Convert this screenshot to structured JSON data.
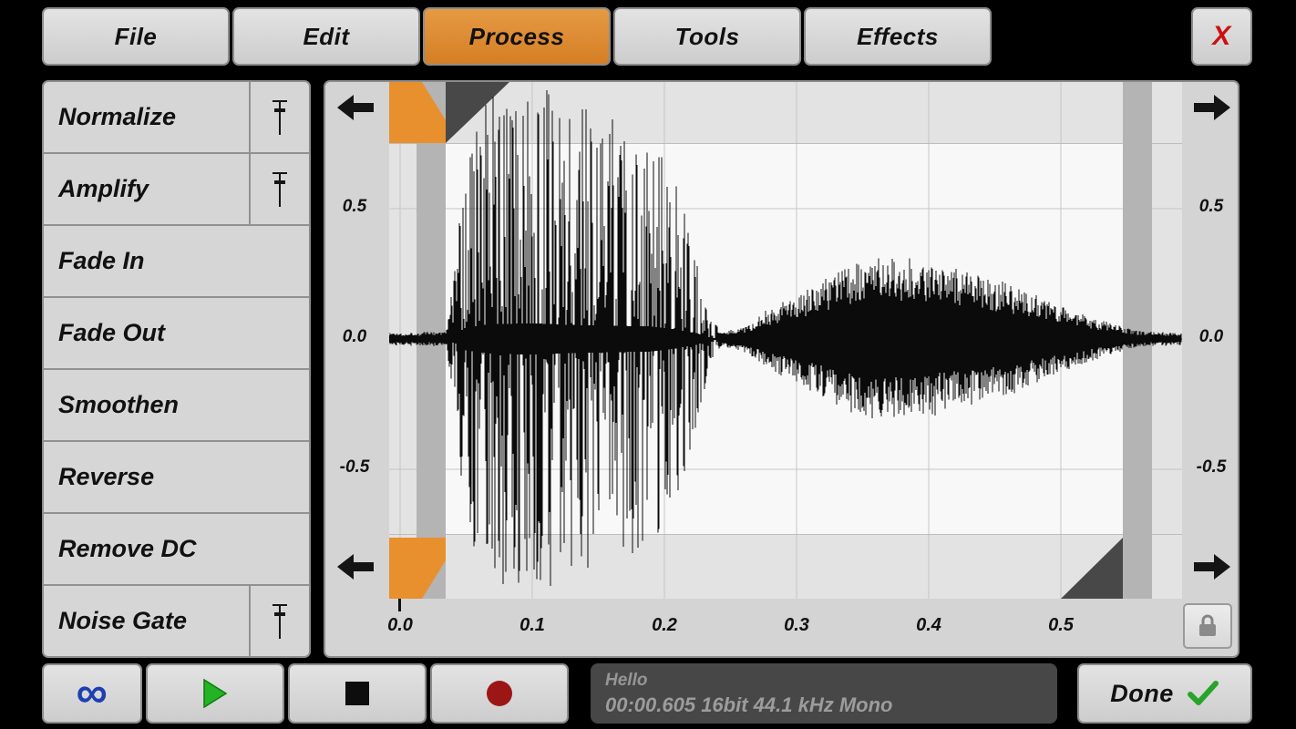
{
  "menu": {
    "items": [
      {
        "label": "File"
      },
      {
        "label": "Edit"
      },
      {
        "label": "Process"
      },
      {
        "label": "Tools"
      },
      {
        "label": "Effects"
      }
    ],
    "active_item": "Process",
    "close_label": "X"
  },
  "process_menu": {
    "items": [
      {
        "label": "Normalize",
        "has_slider": true
      },
      {
        "label": "Amplify",
        "has_slider": true
      },
      {
        "label": "Fade In",
        "has_slider": false
      },
      {
        "label": "Fade Out",
        "has_slider": false
      },
      {
        "label": "Smoothen",
        "has_slider": false
      },
      {
        "label": "Reverse",
        "has_slider": false
      },
      {
        "label": "Remove DC",
        "has_slider": false
      },
      {
        "label": "Noise Gate",
        "has_slider": true
      }
    ]
  },
  "axes": {
    "y_labels": [
      "0.5",
      "0.0",
      "-0.5"
    ],
    "x_labels": [
      "0.0",
      "0.1",
      "0.2",
      "0.3",
      "0.4",
      "0.5"
    ]
  },
  "status": {
    "title": "Hello",
    "info": "00:00.605 16bit 44.1 kHz Mono"
  },
  "done_label": "Done",
  "glyphs": {
    "infinity": "∞"
  },
  "icons": {
    "loop": "infinity-icon",
    "play": "play-icon",
    "stop": "stop-icon",
    "record": "record-icon",
    "lock": "lock-icon",
    "done": "check-icon",
    "close": "x-icon",
    "scroll_left": "arrow-left-icon",
    "scroll_right": "arrow-right-icon",
    "slider": "slider-icon"
  },
  "colors": {
    "active_tab_orange": "#dd8630",
    "selection_handle_orange": "#e8902e",
    "close_x_red": "#cc1111",
    "play_green": "#24b324",
    "record_red": "#9c1616",
    "loop_blue": "#1e3fb4",
    "done_check_green": "#28a42a"
  },
  "waveform": {
    "duration_s": 0.605,
    "amplitude_clip": 0.75,
    "selection": {
      "start_s": 0.034,
      "end_s": 0.547
    },
    "seed": 1337,
    "envelope": [
      [
        0,
        0.025
      ],
      [
        0.035,
        0.03
      ],
      [
        0.042,
        0.3
      ],
      [
        0.05,
        0.75
      ],
      [
        0.07,
        0.95
      ],
      [
        0.1,
        1
      ],
      [
        0.13,
        0.9
      ],
      [
        0.16,
        0.85
      ],
      [
        0.19,
        0.8
      ],
      [
        0.21,
        0.6
      ],
      [
        0.225,
        0.35
      ],
      [
        0.235,
        0.08
      ],
      [
        0.245,
        0.03
      ],
      [
        0.26,
        0.05
      ],
      [
        0.28,
        0.12
      ],
      [
        0.31,
        0.2
      ],
      [
        0.34,
        0.28
      ],
      [
        0.37,
        0.33
      ],
      [
        0.4,
        0.3
      ],
      [
        0.43,
        0.26
      ],
      [
        0.46,
        0.22
      ],
      [
        0.49,
        0.15
      ],
      [
        0.52,
        0.09
      ],
      [
        0.545,
        0.05
      ],
      [
        0.56,
        0.03
      ],
      [
        0.605,
        0.02
      ]
    ]
  }
}
